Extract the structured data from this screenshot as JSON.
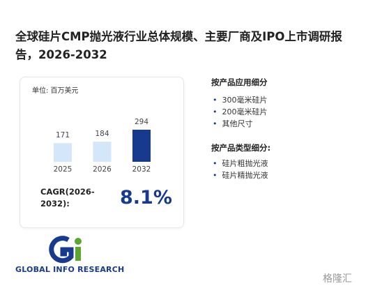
{
  "header": {
    "title": "全球硅片CMP抛光液行业总体规模、主要厂商及IPO上市调研报告，2026-2032"
  },
  "chart_data": {
    "type": "bar",
    "unit": "单位: 百万美元",
    "categories": [
      "2025",
      "2026",
      "2032"
    ],
    "values": [
      171,
      184,
      294
    ],
    "colors": [
      "#d3e6fa",
      "#d3e6fa",
      "#173a8e"
    ]
  },
  "cagr": {
    "label": "CAGR(2026-2032):",
    "value": "8.1%"
  },
  "segments": [
    {
      "title": "按产品应用细分",
      "items": [
        "300毫米硅片",
        "200毫米硅片",
        "其他尺寸"
      ]
    },
    {
      "title": "按产品类型细分:",
      "items": [
        "硅片粗抛光液",
        "硅片精抛光液"
      ]
    }
  ],
  "logo": {
    "text": "GLOBAL INFO RESEARCH"
  },
  "watermark": {
    "text": "格隆汇"
  }
}
